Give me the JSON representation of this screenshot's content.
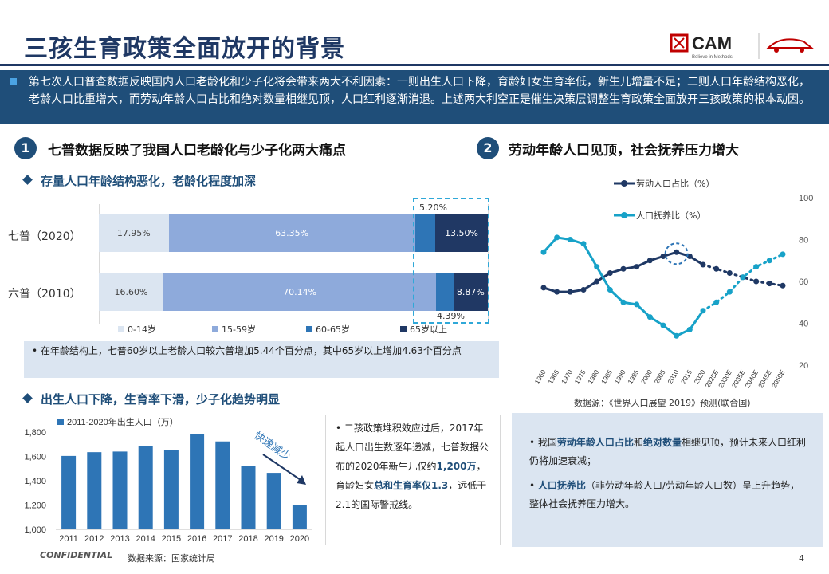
{
  "title": "三孩生育政策全面放开的背景",
  "logo": {
    "brand": "CAM",
    "tagline": "Believe in Methods"
  },
  "banner": "第七次人口普查数据反映国内人口老龄化和少子化将会带来两大不利因素：一则出生人口下降，育龄妇女生育率低，新生儿增量不足；二则人口年龄结构恶化，老龄人口比重增大，而劳动年龄人口占比和绝对数量相继见顶，人口红利逐渐消退。上述两大利空正是催生决策层调整生育政策全面放开三孩政策的根本动因。",
  "section1": {
    "num": "1",
    "title": "七普数据反映了我国人口老龄化与少子化两大痛点"
  },
  "section2": {
    "num": "2",
    "title": "劳动年龄人口见顶，社会抚养压力增大"
  },
  "sub1": "存量人口年龄结构恶化，老龄化程度加深",
  "sub2": "出生人口下降，生育率下滑，少子化趋势明显",
  "age_note": "在年龄结构上，七普60岁以上老龄人口较六普增加5.44个百分点，其中65岁以上增加4.63个百分点",
  "births_note": {
    "p1": "二孩政策堆积效应过后，2017年起人口出生数逐年递减，七普数据公布的2020年新生儿仅约",
    "h1": "1,200万",
    "p2": "，育龄妇女",
    "h2": "总和生育率仅1.3",
    "p3": "，远低于2.1的国际警戒线。"
  },
  "labor_note": {
    "a1": "我国",
    "ha": "劳动年龄人口占比",
    "a2": "和",
    "hb": "绝对数量",
    "a3": "相继见顶，预计未来人口红利仍将加速衰减；",
    "hc": "人口抚养比",
    "b1": "（非劳动年龄人口/劳动年龄人口数）呈上升趋势，整体社会抚养压力增大。"
  },
  "source_un": "数据源：《世界人口展望 2019》预测(联合国)",
  "source_nbs": "数据来源：国家统计局",
  "arrow_label": "快速减少",
  "confidential": "CONFIDENTIAL",
  "page_num": "4",
  "chart_data": [
    {
      "type": "bar",
      "orientation": "horizontal-stacked",
      "categories": [
        "七普（2020）",
        "六普（2010）"
      ],
      "series": [
        {
          "name": "0-14岁",
          "values": [
            17.95,
            16.6
          ],
          "labels": [
            "17.95%",
            "16.60%"
          ],
          "color": "#dbe5f1"
        },
        {
          "name": "15-59岁",
          "values": [
            63.35,
            70.14
          ],
          "labels": [
            "63.35%",
            "70.14%"
          ],
          "color": "#8eaadb"
        },
        {
          "name": "60-65岁",
          "values": [
            5.2,
            4.39
          ],
          "labels": [
            "5.20%",
            "4.39%"
          ],
          "color": "#2e75b6"
        },
        {
          "name": "65岁以上",
          "values": [
            13.5,
            8.87
          ],
          "labels": [
            "13.50%",
            "8.87%"
          ],
          "color": "#203864"
        }
      ],
      "xlim": [
        0,
        100
      ]
    },
    {
      "type": "line",
      "x": [
        "1960",
        "1965",
        "1970",
        "1975",
        "1980",
        "1985",
        "1990",
        "1995",
        "2000",
        "2005",
        "2010",
        "2015",
        "2020",
        "2025E",
        "2030E",
        "2035E",
        "2040E",
        "2045E",
        "2050E"
      ],
      "series": [
        {
          "name": "劳动人口占比（%）",
          "color": "#1f3864",
          "values": [
            57,
            55,
            55,
            56,
            60,
            64,
            66,
            67,
            70,
            72,
            74,
            72,
            68,
            66,
            64,
            62,
            60,
            59,
            58
          ]
        },
        {
          "name": "人口抚养比（%）",
          "color": "#17a2c8",
          "values": [
            74,
            81,
            80,
            78,
            67,
            56,
            50,
            49,
            43,
            39,
            34,
            37,
            46,
            50,
            55,
            62,
            67,
            70,
            73
          ]
        }
      ],
      "projection_from": "2025E",
      "y_ticks": [
        "100",
        "80",
        "60",
        "40",
        "20"
      ],
      "ylim": [
        20,
        100
      ],
      "legend": "top-left"
    },
    {
      "type": "bar",
      "categories": [
        "2011",
        "2012",
        "2013",
        "2014",
        "2015",
        "2016",
        "2017",
        "2018",
        "2019",
        "2020"
      ],
      "series": [
        {
          "name": "2011-2020年出生人口（万）",
          "values": [
            1604,
            1635,
            1640,
            1687,
            1655,
            1786,
            1723,
            1523,
            1465,
            1200
          ]
        }
      ],
      "y_ticks": [
        "1,800",
        "1,600",
        "1,400",
        "1,200",
        "1,000"
      ],
      "ylim": [
        1000,
        1800
      ]
    }
  ]
}
